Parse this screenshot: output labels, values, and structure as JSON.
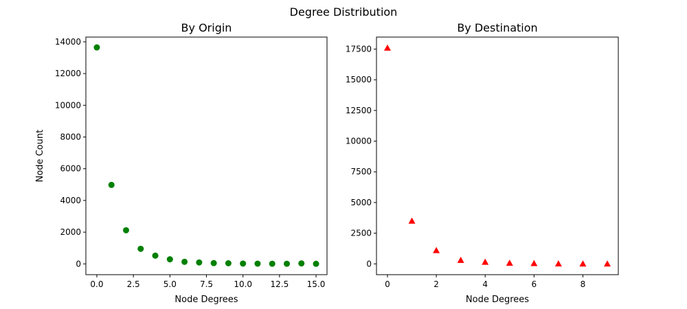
{
  "figure": {
    "title": "Degree Distribution"
  },
  "chart_data": [
    {
      "type": "scatter",
      "title": "By Origin",
      "xlabel": "Node Degrees",
      "ylabel": "Node Count",
      "marker": "circle",
      "color": "#008000",
      "grid": false,
      "xlim": [
        -0.75,
        15.75
      ],
      "ylim": [
        -680,
        14300
      ],
      "xticks": [
        0,
        2.5,
        5,
        7.5,
        10,
        12.5,
        15
      ],
      "xtick_labels": [
        "0.0",
        "2.5",
        "5.0",
        "7.5",
        "10.0",
        "12.5",
        "15.0"
      ],
      "yticks": [
        0,
        2000,
        4000,
        6000,
        8000,
        10000,
        12000,
        14000
      ],
      "ytick_labels": [
        "0",
        "2000",
        "4000",
        "6000",
        "8000",
        "10000",
        "12000",
        "14000"
      ],
      "x": [
        0,
        1,
        2,
        3,
        4,
        5,
        6,
        7,
        8,
        9,
        10,
        11,
        12,
        13,
        14,
        15
      ],
      "y": [
        13650,
        4980,
        2120,
        950,
        520,
        290,
        130,
        90,
        50,
        40,
        20,
        15,
        10,
        10,
        30,
        5
      ]
    },
    {
      "type": "scatter",
      "title": "By Destination",
      "xlabel": "Node Degrees",
      "ylabel": "",
      "marker": "triangle",
      "color": "#ff0000",
      "grid": false,
      "xlim": [
        -0.45,
        9.45
      ],
      "ylim": [
        -880,
        18480
      ],
      "xticks": [
        0,
        2,
        4,
        6,
        8
      ],
      "xtick_labels": [
        "0",
        "2",
        "4",
        "6",
        "8"
      ],
      "yticks": [
        0,
        2500,
        5000,
        7500,
        10000,
        12500,
        15000,
        17500
      ],
      "ytick_labels": [
        "0",
        "2500",
        "5000",
        "7500",
        "10000",
        "12500",
        "15000",
        "17500"
      ],
      "x": [
        0,
        1,
        2,
        3,
        4,
        5,
        6,
        7,
        8,
        9
      ],
      "y": [
        17600,
        3500,
        1100,
        300,
        150,
        70,
        40,
        15,
        10,
        5
      ]
    }
  ]
}
